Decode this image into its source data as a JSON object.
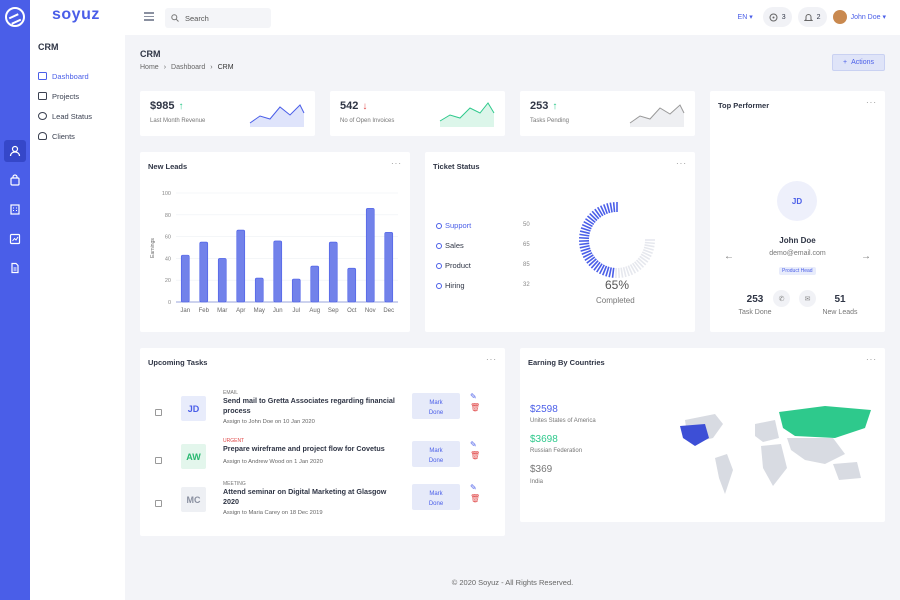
{
  "brand": "soyuz",
  "sidebar": {
    "title": "CRM",
    "items": [
      {
        "label": "Dashboard",
        "icon": "dashboard-icon"
      },
      {
        "label": "Projects",
        "icon": "projects-icon"
      },
      {
        "label": "Lead Status",
        "icon": "lead-status-icon"
      },
      {
        "label": "Clients",
        "icon": "clients-icon"
      }
    ]
  },
  "topbar": {
    "search_placeholder": "Search",
    "lang": "EN",
    "messages_count": "3",
    "notifications_count": "2",
    "user": "John Doe"
  },
  "page": {
    "title": "CRM",
    "breadcrumb": [
      "Home",
      "Dashboard",
      "CRM"
    ],
    "actions_label": "Actions"
  },
  "stats": [
    {
      "value": "$985",
      "label": "Last Month Revenue",
      "trend": "up"
    },
    {
      "value": "542",
      "label": "No of Open Invoices",
      "trend": "down"
    },
    {
      "value": "253",
      "label": "Tasks Pending",
      "trend": "up"
    }
  ],
  "new_leads": {
    "title": "New Leads",
    "ylabel": "Earnings"
  },
  "chart_data": {
    "type": "bar",
    "title": "New Leads",
    "ylabel": "Earnings",
    "categories": [
      "Jan",
      "Feb",
      "Mar",
      "Apr",
      "May",
      "Jun",
      "Jul",
      "Aug",
      "Sep",
      "Oct",
      "Nov",
      "Dec"
    ],
    "values": [
      43,
      55,
      40,
      66,
      22,
      56,
      21,
      33,
      55,
      31,
      86,
      64
    ],
    "yticks": [
      0,
      20,
      40,
      60,
      80,
      100
    ],
    "ylim": [
      0,
      100
    ]
  },
  "ticket_status": {
    "title": "Ticket Status",
    "items": [
      {
        "label": "Support",
        "value": "50"
      },
      {
        "label": "Sales",
        "value": "65"
      },
      {
        "label": "Product",
        "value": "85"
      },
      {
        "label": "Hiring",
        "value": "32"
      }
    ],
    "percent": 65,
    "percent_text": "65%",
    "percent_label": "Completed"
  },
  "top_performer": {
    "title": "Top Performer",
    "initials": "JD",
    "name": "John Doe",
    "email": "demo@email.com",
    "role": "Product Head",
    "tasks_value": "253",
    "tasks_label": "Task Done",
    "leads_value": "51",
    "leads_label": "New Leads"
  },
  "upcoming_tasks": {
    "title": "Upcoming Tasks",
    "mark_label_1": "Mark",
    "mark_label_2": "Done",
    "items": [
      {
        "initials": "JD",
        "category": "EMAIL",
        "title": "Send mail to Gretta Associates regarding financial process",
        "assign": "Assign to John Doe on 10 Jan 2020",
        "color": "#4a5ee8",
        "bg": "#e8ecfb",
        "cat_color": "#777777"
      },
      {
        "initials": "AW",
        "category": "URGENT",
        "title": "Prepare wireframe and project flow for Covetus",
        "assign": "Assign to Andrew Wood on 1 Jan 2020",
        "color": "#28b870",
        "bg": "#e3f6ec",
        "cat_color": "#e04848"
      },
      {
        "initials": "MC",
        "category": "MEETING",
        "title": "Attend seminar on Digital Marketing at Glasgow 2020",
        "assign": "Assign to Maria Carey on 18 Dec 2019",
        "color": "#8a90a0",
        "bg": "#eef0f4",
        "cat_color": "#777777"
      }
    ]
  },
  "earnings": {
    "title": "Earning By Countries",
    "items": [
      {
        "amount": "$2598",
        "country": "Unites States of America",
        "color": "#4a5ee8"
      },
      {
        "amount": "$3698",
        "country": "Russian Federation",
        "color": "#2ec98c"
      },
      {
        "amount": "$369",
        "country": "India",
        "color": "#777777"
      }
    ]
  },
  "footer": "© 2020 Soyuz - All Rights Reserved.",
  "colors": {
    "primary": "#4a5ee8",
    "success": "#2ec98c",
    "danger": "#e04848"
  }
}
